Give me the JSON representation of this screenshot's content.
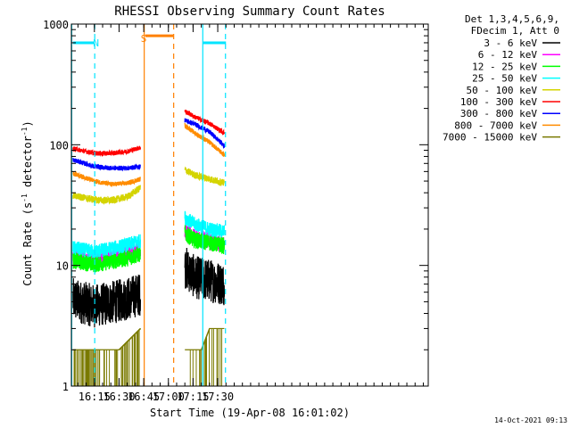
{
  "chart_data": {
    "type": "line",
    "title": "RHESSI Observing Summary Count Rates",
    "xlabel": "Start Time (19-Apr-08 16:01:02)",
    "ylabel_main": "Count Rate (s",
    "ylabel_sup1": "-1",
    "ylabel_mid": " detector",
    "ylabel_sup2": "-1",
    "ylabel_end": ")",
    "y_scale": "log",
    "ylim": [
      1,
      1000
    ],
    "xlim_min": [
      961,
      1178
    ],
    "y_ticks": [
      {
        "value": 1,
        "label": "1"
      },
      {
        "value": 10,
        "label": "10"
      },
      {
        "value": 100,
        "label": "100"
      },
      {
        "value": 1000,
        "label": "1000"
      }
    ],
    "x_ticks": [
      {
        "min": 975,
        "label": "16:15"
      },
      {
        "min": 990,
        "label": "16:30"
      },
      {
        "min": 1005,
        "label": "16:45"
      },
      {
        "min": 1020,
        "label": "17:00"
      },
      {
        "min": 1035,
        "label": "17:15"
      },
      {
        "min": 1050,
        "label": "17:30"
      }
    ],
    "legend_header": [
      "Det 1,3,4,5,6,9,",
      "FDecim 1, Att 0"
    ],
    "legend_position": "right",
    "series": [
      {
        "name": "3 - 6 keV",
        "color": "#000000",
        "seg1": [
          [
            962,
            5.2
          ],
          [
            975,
            4.6
          ],
          [
            985,
            4.9
          ],
          [
            995,
            5.3
          ],
          [
            1003,
            5.8
          ]
        ],
        "seg2": [
          [
            1030,
            9.8
          ],
          [
            1036,
            8.0
          ],
          [
            1045,
            7.5
          ],
          [
            1054,
            7.0
          ]
        ],
        "noise": 0.18
      },
      {
        "name": "6 - 12 keV",
        "color": "#ff00ff",
        "seg1": [
          [
            962,
            12.0
          ],
          [
            975,
            11.2
          ],
          [
            985,
            11.8
          ],
          [
            995,
            12.8
          ],
          [
            1003,
            13.5
          ]
        ],
        "seg2": [
          [
            1030,
            19.0
          ],
          [
            1036,
            17.0
          ],
          [
            1045,
            16.0
          ],
          [
            1054,
            15.0
          ]
        ],
        "noise": 0.07
      },
      {
        "name": "12 - 25 keV",
        "color": "#00ff00",
        "seg1": [
          [
            962,
            11.0
          ],
          [
            975,
            10.2
          ],
          [
            985,
            10.8
          ],
          [
            995,
            11.5
          ],
          [
            1003,
            12.5
          ]
        ],
        "seg2": [
          [
            1030,
            18.5
          ],
          [
            1036,
            16.2
          ],
          [
            1045,
            15.5
          ],
          [
            1054,
            14.5
          ]
        ],
        "noise": 0.07
      },
      {
        "name": "25 - 50 keV",
        "color": "#00ffff",
        "seg1": [
          [
            962,
            14.0
          ],
          [
            975,
            13.0
          ],
          [
            985,
            13.8
          ],
          [
            995,
            14.8
          ],
          [
            1003,
            16.0
          ]
        ],
        "seg2": [
          [
            1030,
            25.0
          ],
          [
            1036,
            22.0
          ],
          [
            1045,
            20.0
          ],
          [
            1054,
            19.0
          ]
        ],
        "noise": 0.06
      },
      {
        "name": "50 - 100 keV",
        "color": "#d4d400",
        "seg1": [
          [
            962,
            38.0
          ],
          [
            975,
            35.0
          ],
          [
            985,
            34.5
          ],
          [
            995,
            37.0
          ],
          [
            1003,
            44.0
          ]
        ],
        "seg2": [
          [
            1030,
            62.0
          ],
          [
            1036,
            56.0
          ],
          [
            1045,
            52.0
          ],
          [
            1054,
            48.0
          ]
        ],
        "noise": 0.03
      },
      {
        "name": "100 - 300 keV",
        "color": "#ff0000",
        "seg1": [
          [
            962,
            93.0
          ],
          [
            975,
            85.0
          ],
          [
            985,
            85.0
          ],
          [
            995,
            88.0
          ],
          [
            1003,
            95.0
          ]
        ],
        "seg2": [
          [
            1030,
            190.0
          ],
          [
            1036,
            170.0
          ],
          [
            1045,
            150.0
          ],
          [
            1054,
            125.0
          ]
        ],
        "noise": 0.02
      },
      {
        "name": "300 - 800 keV",
        "color": "#0000ff",
        "seg1": [
          [
            962,
            75.0
          ],
          [
            975,
            66.0
          ],
          [
            985,
            64.0
          ],
          [
            995,
            64.0
          ],
          [
            1003,
            66.0
          ]
        ],
        "seg2": [
          [
            1030,
            160.0
          ],
          [
            1036,
            148.0
          ],
          [
            1045,
            128.0
          ],
          [
            1054,
            98.0
          ]
        ],
        "noise": 0.02
      },
      {
        "name": "800 - 7000 keV",
        "color": "#ff8c00",
        "seg1": [
          [
            962,
            58.0
          ],
          [
            975,
            50.0
          ],
          [
            985,
            47.0
          ],
          [
            995,
            48.0
          ],
          [
            1003,
            52.0
          ]
        ],
        "seg2": [
          [
            1030,
            145.0
          ],
          [
            1036,
            125.0
          ],
          [
            1045,
            105.0
          ],
          [
            1054,
            82.0
          ]
        ],
        "noise": 0.02
      },
      {
        "name": "7000 - 15000 keV",
        "color": "#7a7a00",
        "seg1": [
          [
            962,
            2.0
          ],
          [
            975,
            2.0
          ],
          [
            990,
            2.0
          ],
          [
            1003,
            3.0
          ]
        ],
        "seg2": [
          [
            1030,
            2.0
          ],
          [
            1040,
            2.0
          ],
          [
            1045,
            3.0
          ],
          [
            1054,
            3.0
          ]
        ],
        "noise": 0.0
      }
    ],
    "annotations": [
      {
        "label": "N",
        "color": "#00e5ff",
        "min": 976,
        "y": 700
      },
      {
        "label": "S",
        "color": "#ff8000",
        "min": 1005,
        "y": 760
      }
    ],
    "status_bars": [
      {
        "kind": "night",
        "color": "#00e5ff",
        "from": 962,
        "to": 975,
        "y": 700
      },
      {
        "kind": "night",
        "color": "#00e5ff",
        "from": 1041,
        "to": 1055,
        "y": 700
      },
      {
        "kind": "saa",
        "color": "#ff8000",
        "from": 1006,
        "to": 1023,
        "y": 800
      }
    ],
    "vlines": [
      {
        "min": 961.2,
        "color": "#00e5ff",
        "style": "solid"
      },
      {
        "min": 975.2,
        "color": "#00e5ff",
        "style": "dashed"
      },
      {
        "min": 1005.3,
        "color": "#ff8000",
        "style": "solid"
      },
      {
        "min": 1023.2,
        "color": "#ff8000",
        "style": "dashed"
      },
      {
        "min": 1040.9,
        "color": "#00e5ff",
        "style": "solid"
      },
      {
        "min": 1054.7,
        "color": "#00e5ff",
        "style": "dashed"
      }
    ],
    "timestamp": "14-Oct-2021 09:13"
  }
}
